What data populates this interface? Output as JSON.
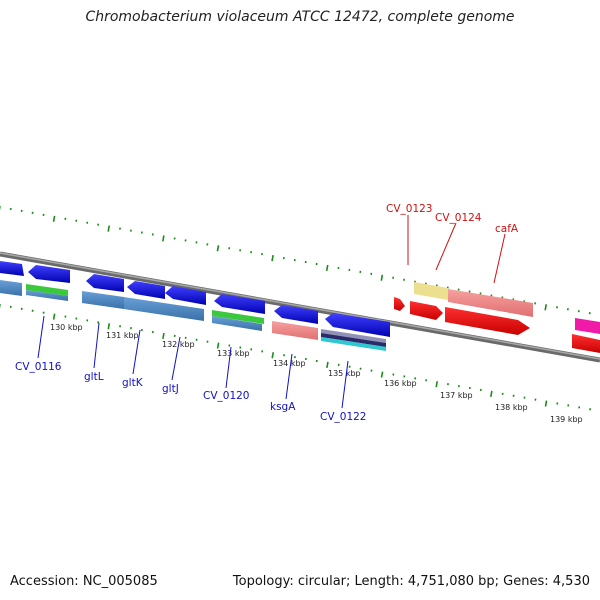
{
  "title": "Chromobacterium violaceum ATCC 12472, complete genome",
  "footer": {
    "accession": "Accession: NC_005085",
    "stats": "Topology: circular; Length: 4,751,080 bp; Genes: 4,530"
  },
  "colors": {
    "backbone": "#808080",
    "ticks": "#1a8c1a",
    "forward_label": "#d01010",
    "reverse_label": "#1010c8"
  },
  "scale_labels": [
    "130 kbp",
    "131 kbp",
    "132 kbp",
    "133 kbp",
    "134 kbp",
    "135 kbp",
    "136 kbp",
    "137 kbp",
    "138 kbp",
    "139 kbp"
  ],
  "gene_labels": {
    "forward": [
      "CV_0123",
      "CV_0124",
      "cafA"
    ],
    "reverse": [
      "CV_0116",
      "gltL",
      "gltK",
      "gltJ",
      "CV_0120",
      "ksgA",
      "CV_0122"
    ]
  }
}
